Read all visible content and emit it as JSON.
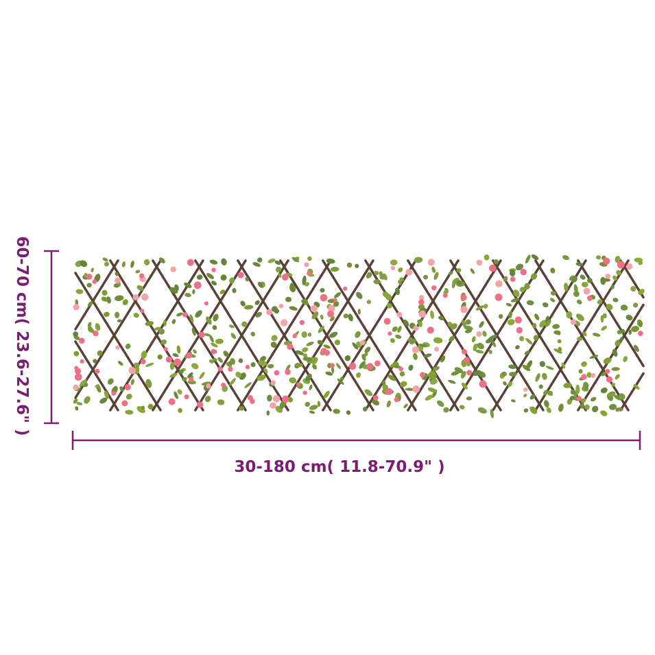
{
  "dimensions": {
    "height_label": "60-70 cm( 23.6-27.6\" )",
    "width_label": "30-180 cm( 11.8-70.9\" )"
  },
  "colors": {
    "dimension_accent": "#7b1c70",
    "lattice_wood": "#5a4035",
    "leaf": "#7f9a3a",
    "flower": "#ee6f86"
  }
}
